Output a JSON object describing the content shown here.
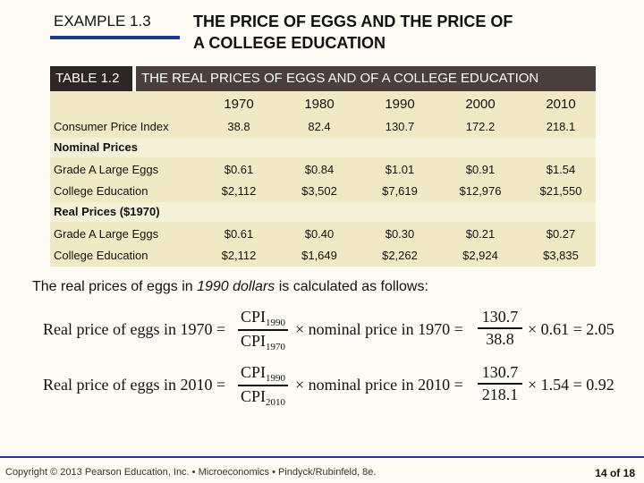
{
  "example_label": "EXAMPLE 1.3",
  "title_line1": "THE PRICE OF EGGS AND THE PRICE OF",
  "title_line2": "A COLLEGE EDUCATION",
  "table": {
    "tag": "TABLE 1.2",
    "title": "THE REAL PRICES OF EGGS AND OF A COLLEGE EDUCATION",
    "years": [
      "1970",
      "1980",
      "1990",
      "2000",
      "2010"
    ],
    "cpi": {
      "label": "Consumer Price Index",
      "values": [
        "38.8",
        "82.4",
        "130.7",
        "172.2",
        "218.1"
      ]
    },
    "nominal_header": "Nominal Prices",
    "nominal": [
      {
        "label": "Grade A Large Eggs",
        "values": [
          "$0.61",
          "$0.84",
          "$1.01",
          "$0.91",
          "$1.54"
        ]
      },
      {
        "label": "College Education",
        "values": [
          "$2,112",
          "$3,502",
          "$7,619",
          "$12,976",
          "$21,550"
        ]
      }
    ],
    "real_header": "Real Prices ($1970)",
    "real": [
      {
        "label": "Grade A Large Eggs",
        "values": [
          "$0.61",
          "$0.40",
          "$0.30",
          "$0.21",
          "$0.27"
        ]
      },
      {
        "label": "College Education",
        "values": [
          "$2,112",
          "$1,649",
          "$2,262",
          "$2,924",
          "$3,835"
        ]
      }
    ]
  },
  "note_pre": "The real prices of eggs in ",
  "note_em": "1990 dollars",
  "note_post": " is calculated as follows:",
  "eq1": {
    "lhs": "Real price of eggs in 1970 =",
    "num": "CPI",
    "num_sub": "1990",
    "den": "CPI",
    "den_sub": "1970",
    "mid": "× nominal price in 1970 =",
    "fnum": "130.7",
    "fden": "38.8",
    "rhs": "× 0.61 = 2.05"
  },
  "eq2": {
    "lhs": "Real price of eggs in 2010 =",
    "num": "CPI",
    "num_sub": "1990",
    "den": "CPI",
    "den_sub": "2010",
    "mid": "× nominal price in 2010 =",
    "fnum": "130.7",
    "fden": "218.1",
    "rhs": "× 1.54 = 0.92"
  },
  "footer": "Copyright © 2013 Pearson Education, Inc. • Microeconomics • Pindyck/Rubinfeld, 8e.",
  "page": "14 of 18",
  "colors": {
    "accent": "#1f3a8a",
    "table_bg": "#f1e9c4",
    "header_bg": "#4a3f3a"
  }
}
